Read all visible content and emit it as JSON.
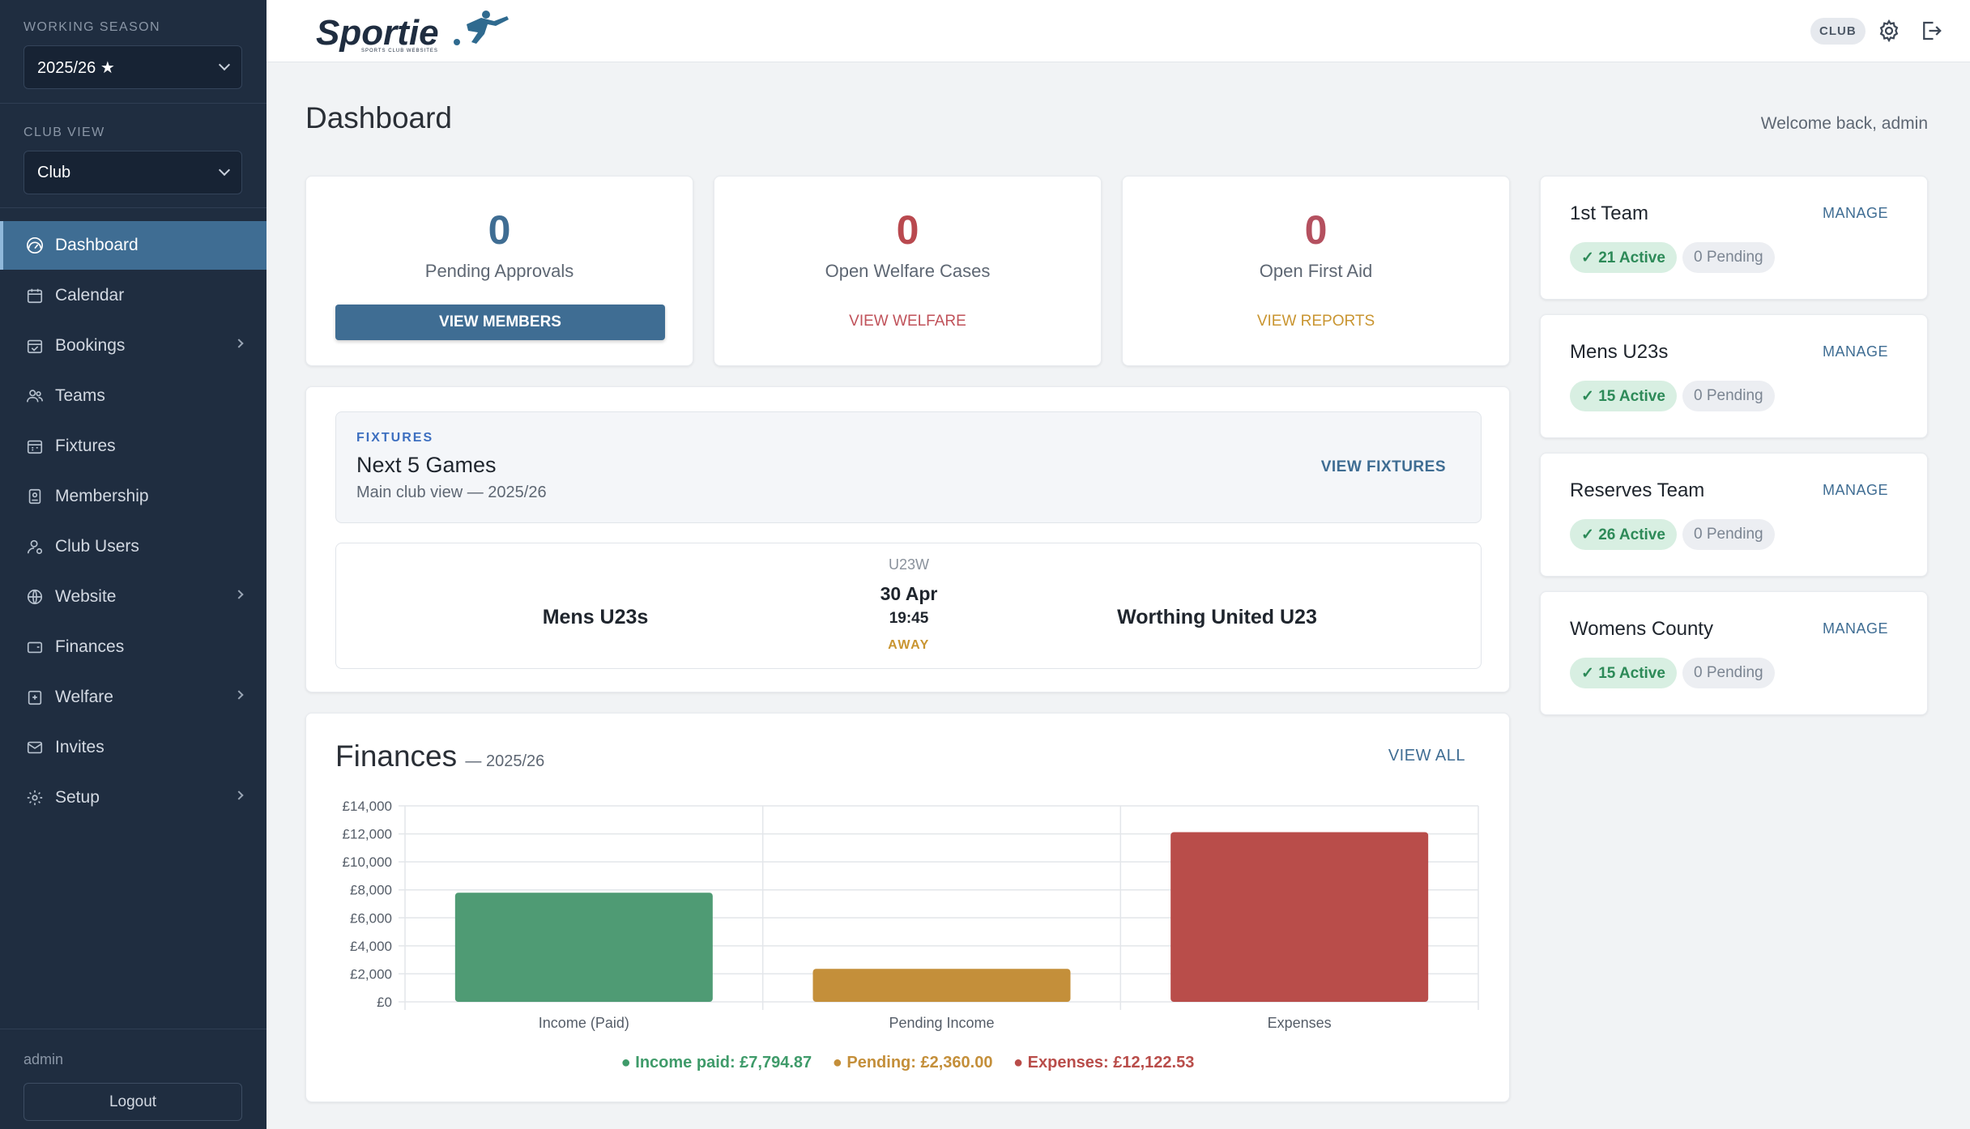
{
  "sidebar": {
    "season_label": "WORKING SEASON",
    "season_value": "2025/26 ★",
    "club_view_label": "CLUB VIEW",
    "club_view_value": "Club",
    "nav": [
      {
        "label": "Dashboard",
        "icon": "gauge-icon",
        "active": true
      },
      {
        "label": "Calendar",
        "icon": "calendar-icon"
      },
      {
        "label": "Bookings",
        "icon": "calendar-check-icon",
        "has_submenu": true
      },
      {
        "label": "Teams",
        "icon": "people-icon"
      },
      {
        "label": "Fixtures",
        "icon": "calendar-grid-icon"
      },
      {
        "label": "Membership",
        "icon": "id-badge-icon"
      },
      {
        "label": "Club Users",
        "icon": "user-icon"
      },
      {
        "label": "Website",
        "icon": "globe-icon",
        "has_submenu": true
      },
      {
        "label": "Finances",
        "icon": "wallet-icon"
      },
      {
        "label": "Welfare",
        "icon": "shield-icon",
        "has_submenu": true
      },
      {
        "label": "Invites",
        "icon": "envelope-icon"
      },
      {
        "label": "Setup",
        "icon": "gear-icon",
        "has_submenu": true
      }
    ],
    "user": "admin",
    "logout_label": "Logout"
  },
  "topbar": {
    "logo_text": "Sportie",
    "logo_tagline": "SPORTS CLUB WEBSITES",
    "club_chip": "CLUB"
  },
  "page": {
    "title": "Dashboard",
    "welcome": "Welcome back, admin"
  },
  "stats": [
    {
      "value": "0",
      "label": "Pending Approvals",
      "action": "VIEW MEMBERS",
      "color": "#3f6d93"
    },
    {
      "value": "0",
      "label": "Open Welfare Cases",
      "action": "VIEW WELFARE",
      "color": "#b9494f"
    },
    {
      "value": "0",
      "label": "Open First Aid",
      "action": "VIEW REPORTS",
      "color": "#b4505f",
      "action_color": "#c99531"
    }
  ],
  "fixtures": {
    "tag": "FIXTURES",
    "title": "Next 5 Games",
    "subtitle": "Main club view — 2025/26",
    "view_label": "VIEW FIXTURES",
    "match": {
      "competition": "U23W",
      "home": "Mens U23s",
      "away": "Worthing United U23",
      "date": "30 Apr",
      "time": "19:45",
      "venue": "AWAY"
    }
  },
  "finances": {
    "title": "Finances",
    "season": "— 2025/26",
    "view_label": "VIEW ALL",
    "legend": {
      "income": "● Income paid: £7,794.87",
      "pending": "● Pending: £2,360.00",
      "expenses": "● Expenses: £12,122.53"
    }
  },
  "chart_data": {
    "type": "bar",
    "categories": [
      "Income (Paid)",
      "Pending Income",
      "Expenses"
    ],
    "values": [
      7794.87,
      2360.0,
      12122.53
    ],
    "colors": [
      "#4f9b74",
      "#c48f3a",
      "#b94d4a"
    ],
    "y_ticks": [
      "£0",
      "£2,000",
      "£4,000",
      "£6,000",
      "£8,000",
      "£10,000",
      "£12,000",
      "£14,000"
    ],
    "ylim": [
      0,
      14000
    ],
    "grid": true
  },
  "teams": [
    {
      "name": "1st Team",
      "manage": "MANAGE",
      "active": "✓ 21 Active",
      "pending": "0 Pending"
    },
    {
      "name": "Mens U23s",
      "manage": "MANAGE",
      "active": "✓ 15 Active",
      "pending": "0 Pending"
    },
    {
      "name": "Reserves Team",
      "manage": "MANAGE",
      "active": "✓ 26 Active",
      "pending": "0 Pending"
    },
    {
      "name": "Womens County",
      "manage": "MANAGE",
      "active": "✓ 15 Active",
      "pending": "0 Pending"
    }
  ]
}
